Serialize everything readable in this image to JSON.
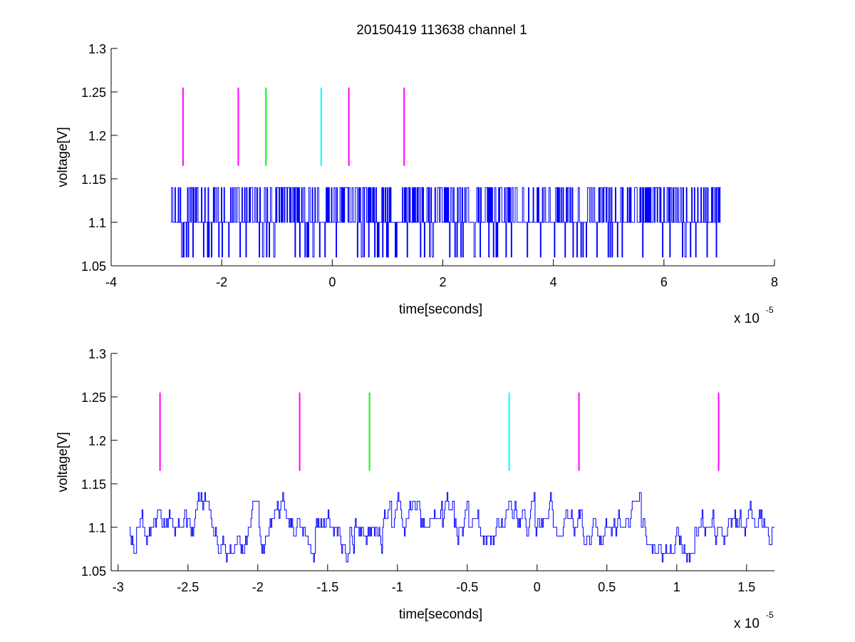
{
  "figure": {
    "title": "20150419 113638 channel 1"
  },
  "colors": {
    "signal": "#0000ff",
    "magenta": "#ff00ff",
    "green": "#00ff00",
    "cyan": "#00ffff",
    "axis": "#000000"
  },
  "chart_data": [
    {
      "type": "line",
      "title": "20150419 113638 channel 1",
      "xlabel": "time[seconds]",
      "ylabel": "voltage[V]",
      "x_multiplier": "x 10",
      "x_multiplier_exponent": "-5",
      "xlim": [
        -4,
        8
      ],
      "ylim": [
        1.05,
        1.3
      ],
      "xticks": [
        -4,
        -2,
        0,
        2,
        4,
        6,
        8
      ],
      "xtick_labels": [
        "-4",
        "-2",
        "0",
        "2",
        "4",
        "6",
        "8"
      ],
      "yticks": [
        1.05,
        1.1,
        1.15,
        1.2,
        1.25,
        1.3
      ],
      "ytick_labels": [
        "1.05",
        "1.1",
        "1.15",
        "1.2",
        "1.25",
        "1.3"
      ],
      "grid": false,
      "signal": {
        "x_range": [
          -2.92,
          7.02
        ],
        "baseline": 1.1,
        "levels": [
          1.06,
          1.1,
          1.14
        ],
        "description_levels": "quantized noisy trace"
      },
      "markers": [
        {
          "x": -2.7,
          "y_range": [
            1.165,
            1.255
          ],
          "color": "magenta"
        },
        {
          "x": -1.7,
          "y_range": [
            1.165,
            1.255
          ],
          "color": "magenta"
        },
        {
          "x": -1.2,
          "y_range": [
            1.165,
            1.255
          ],
          "color": "green"
        },
        {
          "x": -0.2,
          "y_range": [
            1.165,
            1.255
          ],
          "color": "cyan"
        },
        {
          "x": 0.3,
          "y_range": [
            1.165,
            1.255
          ],
          "color": "magenta"
        },
        {
          "x": 1.3,
          "y_range": [
            1.165,
            1.255
          ],
          "color": "magenta"
        }
      ]
    },
    {
      "type": "line",
      "title": "",
      "xlabel": "time[seconds]",
      "ylabel": "voltage[V]",
      "x_multiplier": "x 10",
      "x_multiplier_exponent": "-5",
      "xlim": [
        -3.05,
        1.7
      ],
      "ylim": [
        1.05,
        1.3
      ],
      "xticks": [
        -3,
        -2.5,
        -2,
        -1.5,
        -1,
        -0.5,
        0,
        0.5,
        1,
        1.5
      ],
      "xtick_labels": [
        "-3",
        "-2.5",
        "-2",
        "-1.5",
        "-1",
        "-0.5",
        "0",
        "0.5",
        "1",
        "1.5"
      ],
      "yticks": [
        1.05,
        1.1,
        1.15,
        1.2,
        1.25,
        1.3
      ],
      "ytick_labels": [
        "1.05",
        "1.1",
        "1.15",
        "1.2",
        "1.25",
        "1.3"
      ],
      "grid": false,
      "signal": {
        "x_range": [
          -2.92,
          1.7
        ],
        "baseline": 1.1,
        "levels": [
          1.06,
          1.07,
          1.08,
          1.09,
          1.1,
          1.11,
          1.12,
          1.13,
          1.14
        ]
      },
      "markers": [
        {
          "x": -2.7,
          "y_range": [
            1.165,
            1.255
          ],
          "color": "magenta"
        },
        {
          "x": -1.7,
          "y_range": [
            1.165,
            1.255
          ],
          "color": "magenta"
        },
        {
          "x": -1.2,
          "y_range": [
            1.165,
            1.255
          ],
          "color": "green"
        },
        {
          "x": -0.2,
          "y_range": [
            1.165,
            1.255
          ],
          "color": "cyan"
        },
        {
          "x": 0.3,
          "y_range": [
            1.165,
            1.255
          ],
          "color": "magenta"
        },
        {
          "x": 1.3,
          "y_range": [
            1.165,
            1.255
          ],
          "color": "magenta"
        }
      ]
    }
  ]
}
